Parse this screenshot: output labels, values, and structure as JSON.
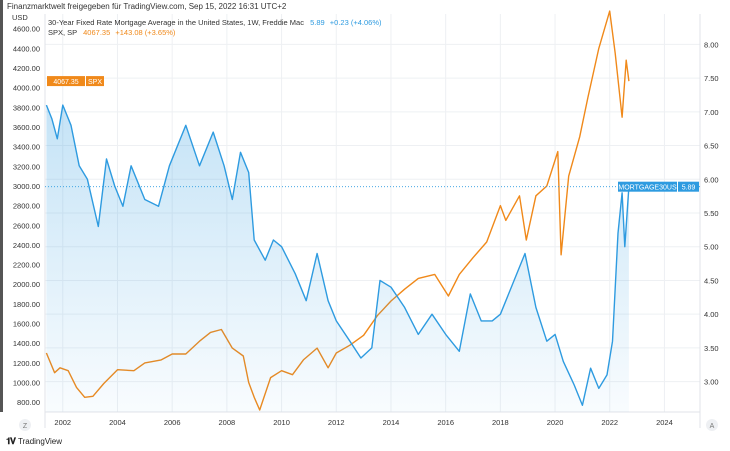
{
  "header": {
    "text": "Finanzmarktwelt freigegeben für TradingView.com, Sep 15, 2022 16:31 UTC+2"
  },
  "footer": {
    "brand": "TradingView",
    "logo_icon": "tradingview-logo-icon"
  },
  "chart_data": {
    "type": "line",
    "currency_label": "USD",
    "legend": [
      {
        "name": "30-Year Fixed Rate Mortgage Average in the United States, 1W, Freddie Mac",
        "value": "5.89",
        "change": "+0.23 (+4.06%)",
        "color": "#2e9be0"
      },
      {
        "name": "SPX, SP",
        "value": "4067.35",
        "change": "+143.08 (+3.65%)",
        "color": "#f0891a"
      }
    ],
    "x_ticks": [
      "2002",
      "2004",
      "2006",
      "2008",
      "2010",
      "2012",
      "2014",
      "2016",
      "2018",
      "2020",
      "2022",
      "2024"
    ],
    "xlim": [
      2001.35,
      2025.3
    ],
    "left_axis": {
      "ylim": [
        700,
        4750
      ],
      "ticks": [
        "800.00",
        "1000.00",
        "1200.00",
        "1400.00",
        "1600.00",
        "1800.00",
        "2000.00",
        "2200.00",
        "2400.00",
        "2600.00",
        "2800.00",
        "3000.00",
        "3200.00",
        "3400.00",
        "3600.00",
        "3800.00",
        "4000.00",
        "4200.00",
        "4400.00",
        "4600.00"
      ]
    },
    "right_axis": {
      "ylim": [
        2.55,
        8.45
      ],
      "ticks": [
        "3.00",
        "3.50",
        "4.00",
        "4.50",
        "5.00",
        "5.50",
        "6.00",
        "6.50",
        "7.00",
        "7.50",
        "8.00"
      ]
    },
    "axis_buttons": {
      "left": "Z",
      "right": "A"
    },
    "series": [
      {
        "name": "SPX",
        "axis": "left",
        "color": "#f0891a",
        "x": [
          2001.4,
          2001.7,
          2001.9,
          2002.2,
          2002.5,
          2002.8,
          2003.1,
          2003.5,
          2004.0,
          2004.6,
          2005.0,
          2005.6,
          2006.0,
          2006.5,
          2007.0,
          2007.4,
          2007.8,
          2008.2,
          2008.6,
          2008.8,
          2009.0,
          2009.2,
          2009.6,
          2010.0,
          2010.4,
          2010.8,
          2011.3,
          2011.7,
          2012.0,
          2012.5,
          2013.0,
          2013.5,
          2014.0,
          2014.5,
          2015.0,
          2015.6,
          2016.1,
          2016.5,
          2017.0,
          2017.5,
          2018.0,
          2018.2,
          2018.7,
          2018.95,
          2019.3,
          2019.7,
          2020.1,
          2020.22,
          2020.5,
          2020.9,
          2021.2,
          2021.6,
          2022.0,
          2022.2,
          2022.45,
          2022.6,
          2022.7
        ],
        "values": [
          1300,
          1100,
          1150,
          1120,
          950,
          850,
          860,
          990,
          1130,
          1120,
          1200,
          1230,
          1290,
          1290,
          1420,
          1510,
          1540,
          1350,
          1270,
          1000,
          850,
          720,
          1050,
          1120,
          1080,
          1230,
          1350,
          1150,
          1300,
          1380,
          1480,
          1680,
          1830,
          1950,
          2060,
          2100,
          1880,
          2100,
          2270,
          2430,
          2800,
          2650,
          2900,
          2450,
          2900,
          3000,
          3350,
          2300,
          3100,
          3500,
          3900,
          4400,
          4780,
          4350,
          3700,
          4280,
          4067
        ]
      },
      {
        "name": "MORTGAGE30US",
        "axis": "right",
        "color": "#2e9be0",
        "x": [
          2001.4,
          2001.6,
          2001.8,
          2002.0,
          2002.3,
          2002.6,
          2002.9,
          2003.3,
          2003.6,
          2003.9,
          2004.2,
          2004.5,
          2005.0,
          2005.5,
          2005.9,
          2006.5,
          2007.0,
          2007.5,
          2007.9,
          2008.2,
          2008.5,
          2008.8,
          2009.0,
          2009.4,
          2009.7,
          2010.0,
          2010.5,
          2010.9,
          2011.3,
          2011.7,
          2012.0,
          2012.5,
          2012.9,
          2013.3,
          2013.6,
          2014.0,
          2014.5,
          2015.0,
          2015.5,
          2016.0,
          2016.5,
          2016.9,
          2017.3,
          2017.7,
          2018.0,
          2018.9,
          2019.3,
          2019.7,
          2020.0,
          2020.3,
          2020.7,
          2021.0,
          2021.3,
          2021.6,
          2021.9,
          2022.1,
          2022.3,
          2022.45,
          2022.55,
          2022.7
        ],
        "values": [
          7.1,
          6.9,
          6.6,
          7.1,
          6.8,
          6.2,
          6.0,
          5.3,
          6.3,
          5.9,
          5.6,
          6.2,
          5.7,
          5.6,
          6.2,
          6.8,
          6.2,
          6.7,
          6.2,
          5.7,
          6.4,
          6.1,
          5.1,
          4.8,
          5.1,
          5.0,
          4.6,
          4.2,
          4.9,
          4.2,
          3.9,
          3.6,
          3.35,
          3.5,
          4.5,
          4.4,
          4.1,
          3.7,
          4.0,
          3.7,
          3.45,
          4.3,
          3.9,
          3.9,
          4.0,
          4.9,
          4.1,
          3.6,
          3.7,
          3.3,
          2.95,
          2.65,
          3.2,
          2.9,
          3.1,
          3.6,
          5.2,
          5.8,
          5.0,
          5.89
        ]
      }
    ],
    "last_value_tags": {
      "left": {
        "value": "4067.35",
        "label": "SPX"
      },
      "right": {
        "label": "MORTGAGE30US",
        "value": "5.89"
      }
    },
    "grid": true
  }
}
